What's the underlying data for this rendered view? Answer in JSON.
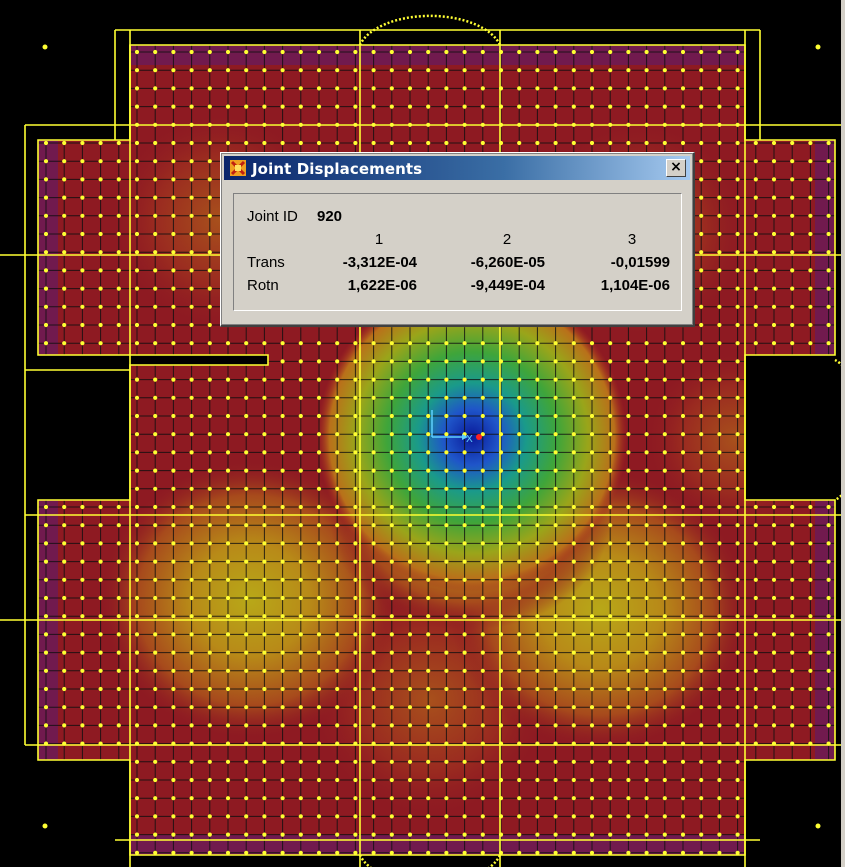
{
  "dialog": {
    "title": "Joint Displacements",
    "close_label": "×",
    "joint_id_label": "Joint ID",
    "joint_id_value": "920",
    "columns": [
      "1",
      "2",
      "3"
    ],
    "rows": [
      {
        "label": "Trans",
        "values": [
          "-3,312E-04",
          "-6,260E-05",
          "-0,01599"
        ]
      },
      {
        "label": "Rotn",
        "values": [
          "1,622E-06",
          "-9,449E-04",
          "1,104E-06"
        ]
      }
    ]
  },
  "model": {
    "selected_axis_label": "X",
    "colors": {
      "grid_lines": "#ffff33",
      "joints": "#ffff33",
      "contour_high": "#8c0f1e",
      "contour_mid": "#c27a12",
      "contour_low": "#1a2fa0",
      "background": "#000000",
      "selection": "#ff2222"
    }
  }
}
